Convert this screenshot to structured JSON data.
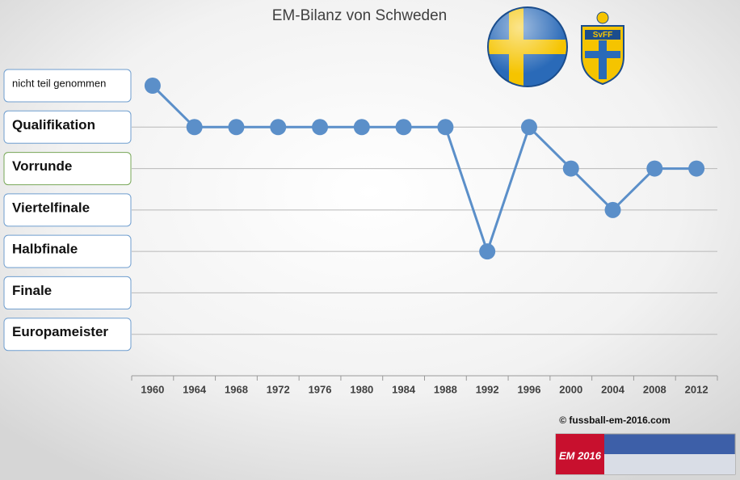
{
  "chart_data": {
    "type": "line",
    "title": "EM-Bilanz von Schweden",
    "categories": [
      "1960",
      "1964",
      "1968",
      "1972",
      "1976",
      "1980",
      "1984",
      "1988",
      "1992",
      "1996",
      "2000",
      "2004",
      "2008",
      "2012"
    ],
    "series": [
      {
        "name": "Schweden",
        "color": "#5b8fc9",
        "values": [
          6,
          5,
          5,
          5,
          5,
          5,
          5,
          5,
          2,
          5,
          4,
          3,
          4,
          4
        ]
      }
    ],
    "ylim": [
      -1,
      6
    ],
    "yticks": [
      {
        "value": 0,
        "label": "Europameister"
      },
      {
        "value": 1,
        "label": "Finale"
      },
      {
        "value": 2,
        "label": "Halbfinale"
      },
      {
        "value": 3,
        "label": "Viertelfinale"
      },
      {
        "value": 4,
        "label": "Vorrunde"
      },
      {
        "value": 5,
        "label": "Qualifikation"
      },
      {
        "value": 6,
        "label": "nicht teil genommen"
      }
    ],
    "grid": true,
    "annotations": {
      "credit": "© fussball-em-2016.com",
      "logo": "SvFF",
      "banner": "EM 2016"
    }
  }
}
